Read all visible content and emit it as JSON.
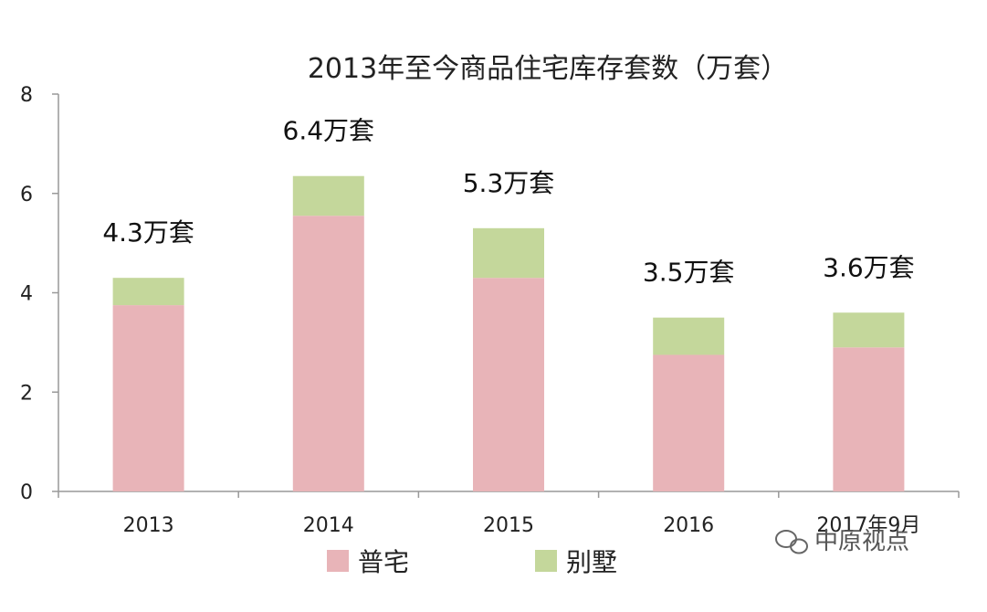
{
  "chart_data": {
    "type": "bar",
    "stacked": true,
    "title": "2013年至今商品住宅库存套数（万套）",
    "categories": [
      "2013",
      "2014",
      "2015",
      "2016",
      "2017年9月"
    ],
    "series": [
      {
        "name": "普宅",
        "values": [
          3.75,
          5.55,
          4.3,
          2.75,
          2.9
        ],
        "color": "#E8B4B8"
      },
      {
        "name": "别墅",
        "values": [
          0.55,
          0.8,
          1.0,
          0.75,
          0.7
        ],
        "color": "#C4D79B"
      }
    ],
    "total_labels": [
      "4.3万套",
      "6.4万套",
      "5.3万套",
      "3.5万套",
      "3.6万套"
    ],
    "yticks": [
      "0",
      "2",
      "4",
      "6",
      "8"
    ],
    "ylim": [
      0,
      8
    ],
    "grid": false,
    "legend_position": "bottom"
  },
  "watermark": {
    "text": "中原视点",
    "icon": "wechat-icon"
  }
}
